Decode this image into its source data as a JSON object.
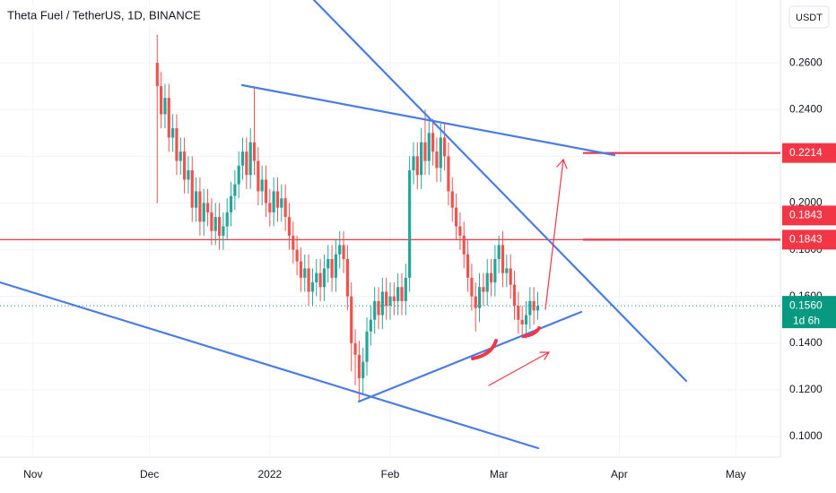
{
  "chart_data": {
    "type": "candlestick",
    "title": "Theta Fuel / TetherUS, 1D, BINANCE",
    "currency": "USDT",
    "up_color": "#26a69a",
    "down_color": "#ef5350",
    "grid": true,
    "xlim": [
      -8.5,
      192.5
    ],
    "ylim": [
      0.0912,
      0.2869
    ],
    "xticks": [
      {
        "value": 0,
        "label": "Nov"
      },
      {
        "value": 30,
        "label": "Dec"
      },
      {
        "value": 61,
        "label": "2022"
      },
      {
        "value": 92,
        "label": "Feb"
      },
      {
        "value": 120,
        "label": "Mar"
      },
      {
        "value": 151,
        "label": "Apr"
      },
      {
        "value": 181,
        "label": "May"
      }
    ],
    "yticks": [
      {
        "value": 0.26,
        "label": "0.2600"
      },
      {
        "value": 0.24,
        "label": "0.2400"
      },
      {
        "value": 0.22,
        "label": "0.2200"
      },
      {
        "value": 0.2,
        "label": "0.2000"
      },
      {
        "value": 0.18,
        "label": "0.1800"
      },
      {
        "value": 0.16,
        "label": "0.1600"
      },
      {
        "value": 0.14,
        "label": "0.1400"
      },
      {
        "value": 0.12,
        "label": "0.1200"
      },
      {
        "value": 0.1,
        "label": "0.1000"
      }
    ],
    "price_labels": [
      {
        "value": 0.2214,
        "label": "0.2214",
        "color": "#f23645"
      },
      {
        "value": 0.1843,
        "label": "0.1843",
        "color": "#f23645"
      },
      {
        "value": 0.1843,
        "label": "0.1843",
        "color": "#f23645"
      },
      {
        "value": 0.156,
        "label": "0.1560",
        "color": "#089981",
        "countdown": "1d 6h"
      }
    ],
    "x": [
      32,
      33,
      34,
      35,
      36,
      37,
      38,
      39,
      40,
      41,
      42,
      43,
      44,
      45,
      46,
      47,
      48,
      49,
      50,
      51,
      52,
      53,
      54,
      55,
      56,
      57,
      58,
      59,
      60,
      61,
      62,
      63,
      64,
      65,
      66,
      67,
      68,
      69,
      70,
      71,
      72,
      73,
      74,
      75,
      76,
      77,
      78,
      79,
      80,
      81,
      82,
      83,
      84,
      85,
      86,
      87,
      88,
      89,
      90,
      91,
      92,
      93,
      94,
      95,
      96,
      97,
      98,
      99,
      100,
      101,
      102,
      103,
      104,
      105,
      106,
      107,
      108,
      109,
      110,
      111,
      112,
      113,
      114,
      115,
      116,
      117,
      118,
      119,
      120,
      121,
      122,
      123,
      124,
      125,
      126,
      127,
      128,
      129,
      130
    ],
    "open": [
      0.26,
      0.25,
      0.238,
      0.245,
      0.228,
      0.232,
      0.218,
      0.222,
      0.21,
      0.214,
      0.198,
      0.205,
      0.192,
      0.2,
      0.196,
      0.188,
      0.194,
      0.186,
      0.19,
      0.196,
      0.203,
      0.208,
      0.216,
      0.222,
      0.212,
      0.226,
      0.218,
      0.205,
      0.21,
      0.2,
      0.196,
      0.205,
      0.198,
      0.202,
      0.194,
      0.186,
      0.18,
      0.175,
      0.168,
      0.172,
      0.162,
      0.166,
      0.17,
      0.164,
      0.172,
      0.176,
      0.168,
      0.178,
      0.182,
      0.176,
      0.16,
      0.14,
      0.135,
      0.125,
      0.132,
      0.145,
      0.15,
      0.158,
      0.152,
      0.162,
      0.156,
      0.16,
      0.158,
      0.164,
      0.158,
      0.168,
      0.214,
      0.22,
      0.212,
      0.226,
      0.218,
      0.23,
      0.222,
      0.215,
      0.228,
      0.22,
      0.205,
      0.198,
      0.19,
      0.186,
      0.178,
      0.168,
      0.16,
      0.155,
      0.164,
      0.162,
      0.17,
      0.166,
      0.176,
      0.182,
      0.17,
      0.172,
      0.165,
      0.156,
      0.15,
      0.148,
      0.152,
      0.158,
      0.154
    ],
    "high": [
      0.272,
      0.256,
      0.251,
      0.251,
      0.238,
      0.238,
      0.228,
      0.228,
      0.22,
      0.22,
      0.211,
      0.211,
      0.206,
      0.206,
      0.202,
      0.2,
      0.2,
      0.196,
      0.202,
      0.209,
      0.214,
      0.222,
      0.228,
      0.228,
      0.232,
      0.25,
      0.224,
      0.216,
      0.216,
      0.206,
      0.211,
      0.211,
      0.208,
      0.208,
      0.2,
      0.192,
      0.186,
      0.181,
      0.178,
      0.178,
      0.172,
      0.176,
      0.176,
      0.178,
      0.182,
      0.182,
      0.184,
      0.188,
      0.188,
      0.182,
      0.166,
      0.146,
      0.141,
      0.138,
      0.151,
      0.156,
      0.164,
      0.164,
      0.168,
      0.168,
      0.166,
      0.166,
      0.17,
      0.17,
      0.174,
      0.22,
      0.226,
      0.226,
      0.232,
      0.24,
      0.236,
      0.236,
      0.228,
      0.234,
      0.234,
      0.226,
      0.211,
      0.204,
      0.196,
      0.192,
      0.184,
      0.174,
      0.166,
      0.17,
      0.17,
      0.176,
      0.176,
      0.182,
      0.186,
      0.188,
      0.178,
      0.178,
      0.171,
      0.162,
      0.156,
      0.158,
      0.164,
      0.164,
      0.162
    ],
    "low": [
      0.2,
      0.232,
      0.232,
      0.222,
      0.222,
      0.212,
      0.212,
      0.204,
      0.204,
      0.192,
      0.192,
      0.186,
      0.186,
      0.19,
      0.182,
      0.182,
      0.18,
      0.18,
      0.184,
      0.19,
      0.197,
      0.202,
      0.21,
      0.206,
      0.206,
      0.212,
      0.199,
      0.199,
      0.194,
      0.19,
      0.19,
      0.192,
      0.192,
      0.188,
      0.18,
      0.174,
      0.169,
      0.162,
      0.162,
      0.156,
      0.156,
      0.16,
      0.158,
      0.158,
      0.166,
      0.162,
      0.162,
      0.172,
      0.17,
      0.154,
      0.128,
      0.122,
      0.115,
      0.118,
      0.126,
      0.139,
      0.144,
      0.146,
      0.146,
      0.15,
      0.15,
      0.152,
      0.152,
      0.152,
      0.152,
      0.162,
      0.208,
      0.206,
      0.206,
      0.212,
      0.212,
      0.216,
      0.209,
      0.209,
      0.214,
      0.199,
      0.192,
      0.184,
      0.18,
      0.172,
      0.162,
      0.154,
      0.145,
      0.149,
      0.156,
      0.156,
      0.16,
      0.16,
      0.17,
      0.164,
      0.164,
      0.159,
      0.15,
      0.144,
      0.142,
      0.142,
      0.146,
      0.148,
      0.15
    ],
    "close": [
      0.25,
      0.238,
      0.245,
      0.228,
      0.232,
      0.218,
      0.222,
      0.21,
      0.214,
      0.198,
      0.205,
      0.192,
      0.2,
      0.196,
      0.188,
      0.194,
      0.186,
      0.19,
      0.196,
      0.203,
      0.208,
      0.216,
      0.222,
      0.212,
      0.226,
      0.218,
      0.205,
      0.21,
      0.2,
      0.196,
      0.205,
      0.198,
      0.202,
      0.194,
      0.186,
      0.18,
      0.175,
      0.168,
      0.172,
      0.162,
      0.166,
      0.17,
      0.164,
      0.172,
      0.176,
      0.168,
      0.178,
      0.182,
      0.176,
      0.16,
      0.14,
      0.135,
      0.125,
      0.132,
      0.145,
      0.15,
      0.158,
      0.152,
      0.162,
      0.156,
      0.16,
      0.158,
      0.164,
      0.158,
      0.168,
      0.214,
      0.22,
      0.212,
      0.226,
      0.218,
      0.23,
      0.222,
      0.215,
      0.228,
      0.22,
      0.205,
      0.198,
      0.19,
      0.186,
      0.178,
      0.168,
      0.16,
      0.155,
      0.164,
      0.162,
      0.17,
      0.166,
      0.176,
      0.182,
      0.17,
      0.172,
      0.165,
      0.156,
      0.15,
      0.148,
      0.152,
      0.158,
      0.154,
      0.156
    ]
  }
}
